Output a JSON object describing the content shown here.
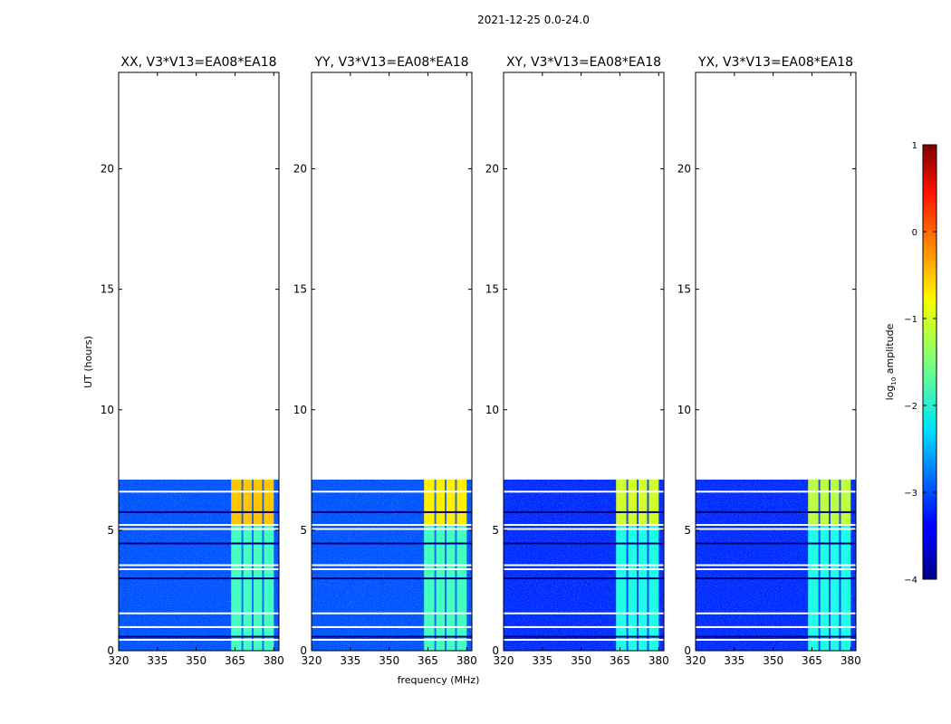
{
  "figure": {
    "suptitle": "2021-12-25 0.0-24.0",
    "colorbar_label_prefix": "log",
    "colorbar_label_sub": "10",
    "colorbar_label_suffix": " amplitude"
  },
  "chart_data": {
    "type": "heatmap",
    "title": "2021-12-25 0.0-24.0",
    "xlabel": "frequency (MHz)",
    "ylabel": "UT (hours)",
    "xlim": [
      320,
      382
    ],
    "ylim": [
      0,
      24
    ],
    "xticks": [
      320,
      335,
      350,
      365,
      380
    ],
    "yticks": [
      0,
      5,
      10,
      15,
      20
    ],
    "colorbar": {
      "label": "log10 amplitude",
      "range": [
        -4,
        1
      ],
      "ticks": [
        -4,
        -3,
        -2,
        -1,
        0,
        1
      ],
      "colormap": "jet"
    },
    "data_extent_hours": [
      0,
      7.1
    ],
    "bright_band_mhz": [
      364,
      380
    ],
    "flag_gaps_hours": [
      0.45,
      0.58,
      0.98,
      1.55,
      3.0,
      3.38,
      3.55,
      4.45,
      5.05,
      5.22,
      5.75,
      6.6
    ],
    "panels": [
      {
        "title": "XX, V3*V13=EA08*EA18",
        "background_level": -3.0,
        "band_level_low": -1.8,
        "band_level_high": -0.6,
        "band_lower_edge_mhz": 363.5
      },
      {
        "title": "YY, V3*V13=EA08*EA18",
        "background_level": -3.0,
        "band_level_low": -1.8,
        "band_level_high": -0.8,
        "band_lower_edge_mhz": 363.5
      },
      {
        "title": "XY, V3*V13=EA08*EA18",
        "background_level": -3.2,
        "band_level_low": -2.0,
        "band_level_high": -1.1,
        "band_lower_edge_mhz": 363.5
      },
      {
        "title": "YX, V3*V13=EA08*EA18",
        "background_level": -3.2,
        "band_level_low": -2.0,
        "band_level_high": -1.2,
        "band_lower_edge_mhz": 363.5
      }
    ]
  }
}
